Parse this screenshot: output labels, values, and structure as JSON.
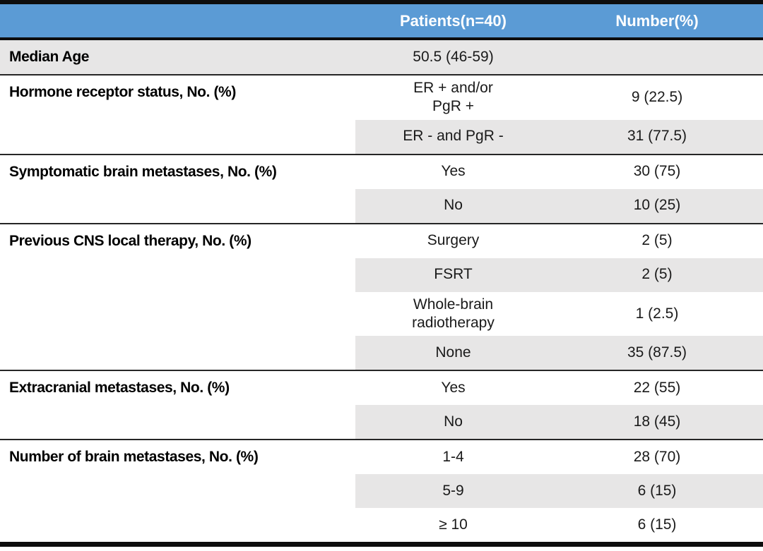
{
  "header": {
    "col1": "",
    "col2": "Patients(n=40)",
    "col3": "Number(%)"
  },
  "colors": {
    "header_bg": "#5b9bd5",
    "header_text": "#ffffff",
    "row_shade": "#e7e6e6",
    "body_text": "#1a1a1a",
    "rule": "#0d0d0d"
  },
  "sections": [
    {
      "label": "Median Age",
      "full_row_shade": true,
      "rows": [
        {
          "patients": "50.5 (46-59)",
          "number": "",
          "shaded": true
        }
      ]
    },
    {
      "label": "Hormone receptor status, No. (%)",
      "full_row_shade": false,
      "rows": [
        {
          "patients": "ER + and/or\nPgR +",
          "number": "9 (22.5)",
          "shaded": false
        },
        {
          "patients": "ER - and PgR -",
          "number": "31 (77.5)",
          "shaded": true
        }
      ]
    },
    {
      "label": "Symptomatic brain metastases, No. (%)",
      "full_row_shade": false,
      "rows": [
        {
          "patients": "Yes",
          "number": "30 (75)",
          "shaded": false
        },
        {
          "patients": "No",
          "number": "10 (25)",
          "shaded": true
        }
      ]
    },
    {
      "label": "Previous CNS local therapy, No. (%)",
      "full_row_shade": false,
      "rows": [
        {
          "patients": "Surgery",
          "number": "2 (5)",
          "shaded": false
        },
        {
          "patients": "FSRT",
          "number": "2 (5)",
          "shaded": true
        },
        {
          "patients": "Whole-brain\nradiotherapy",
          "number": "1 (2.5)",
          "shaded": false
        },
        {
          "patients": "None",
          "number": "35 (87.5)",
          "shaded": true
        }
      ]
    },
    {
      "label": "Extracranial metastases, No. (%)",
      "full_row_shade": false,
      "rows": [
        {
          "patients": "Yes",
          "number": "22 (55)",
          "shaded": false
        },
        {
          "patients": "No",
          "number": "18 (45)",
          "shaded": true
        }
      ]
    },
    {
      "label": "Number of brain metastases, No. (%)",
      "full_row_shade": false,
      "rows": [
        {
          "patients": "1-4",
          "number": "28 (70)",
          "shaded": false
        },
        {
          "patients": "5-9",
          "number": "6 (15)",
          "shaded": true
        },
        {
          "patients": "≥ 10",
          "number": "6 (15)",
          "shaded": false
        }
      ]
    }
  ]
}
